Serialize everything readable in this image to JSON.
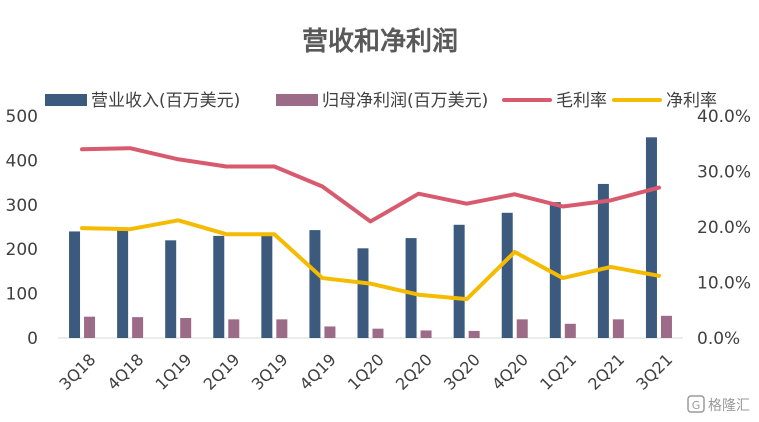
{
  "chart_data": {
    "type": "bar+line",
    "title": "营收和净利润",
    "categories": [
      "3Q18",
      "4Q18",
      "1Q19",
      "2Q19",
      "3Q19",
      "4Q19",
      "1Q20",
      "2Q20",
      "3Q20",
      "4Q20",
      "1Q21",
      "2Q21",
      "3Q21"
    ],
    "left_axis": {
      "ticks": [
        "0",
        "100",
        "200",
        "300",
        "400",
        "500"
      ],
      "ylim": [
        0,
        500
      ]
    },
    "right_axis": {
      "ticks": [
        "0.0%",
        "10.0%",
        "20.0%",
        "30.0%",
        "40.0%"
      ],
      "ylim": [
        0,
        40
      ]
    },
    "series": [
      {
        "name": "营业收入(百万美元)",
        "kind": "bar",
        "axis": "left",
        "color": "#3c5a7e",
        "values": [
          240,
          247,
          220,
          230,
          232,
          243,
          202,
          225,
          255,
          282,
          306,
          347,
          452
        ]
      },
      {
        "name": "归母净利润(百万美元)",
        "kind": "bar",
        "axis": "left",
        "color": "#9c6b88",
        "values": [
          48,
          47,
          45,
          42,
          42,
          26,
          21,
          17,
          16,
          42,
          32,
          42,
          50
        ]
      },
      {
        "name": "毛利率",
        "kind": "line",
        "axis": "right",
        "color": "#d85a6e",
        "values": [
          34.0,
          34.2,
          32.2,
          30.9,
          30.9,
          27.3,
          21.0,
          26.0,
          24.2,
          25.9,
          23.7,
          24.8,
          27.1
        ]
      },
      {
        "name": "净利率",
        "kind": "line",
        "axis": "right",
        "color": "#f5bb00",
        "values": [
          19.8,
          19.6,
          21.2,
          18.7,
          18.7,
          10.8,
          9.8,
          7.8,
          7.0,
          15.5,
          10.8,
          12.8,
          11.2
        ]
      }
    ],
    "legend": "top",
    "grid": false
  },
  "watermark": {
    "text": "格隆汇"
  }
}
